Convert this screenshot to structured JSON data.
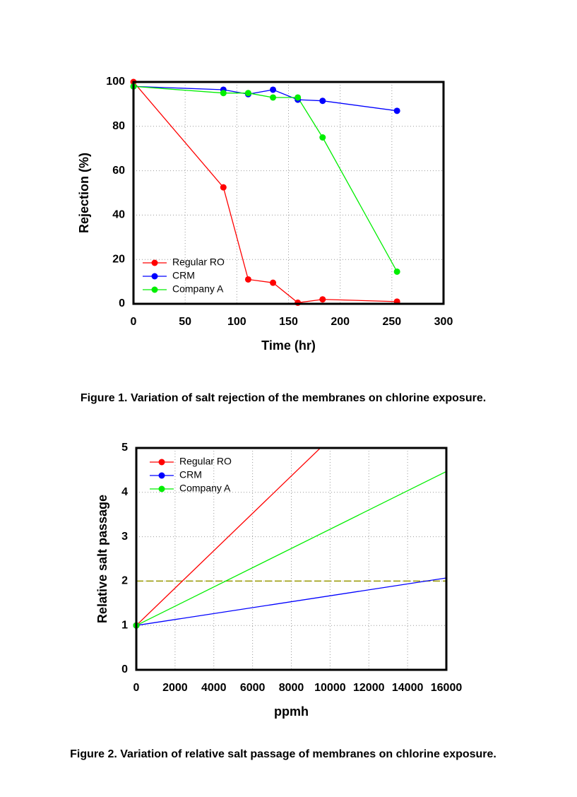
{
  "chart_data": [
    {
      "type": "line",
      "xlabel": "Time (hr)",
      "ylabel": "Rejection (%)",
      "caption": "Figure 1. Variation of salt rejection of the membranes on chlorine exposure.",
      "xlim": [
        0,
        300
      ],
      "xticks": [
        0,
        50,
        100,
        150,
        200,
        250,
        300
      ],
      "ylim": [
        0,
        100
      ],
      "yticks": [
        0,
        20,
        40,
        60,
        80,
        100
      ],
      "grid": true,
      "legend": "lower left",
      "markers": "all",
      "series": [
        {
          "name": "Regular RO",
          "color": "#ff0000",
          "x": [
            0,
            87,
            111,
            135,
            159,
            183,
            255
          ],
          "values": [
            100,
            52.5,
            11,
            9.5,
            0.5,
            2,
            1
          ]
        },
        {
          "name": "CRM",
          "color": "#0000ff",
          "x": [
            0,
            87,
            111,
            135,
            159,
            183,
            255
          ],
          "values": [
            98,
            96.5,
            94.5,
            96.5,
            92,
            91.5,
            87
          ]
        },
        {
          "name": "Company A",
          "color": "#00ee00",
          "x": [
            0,
            87,
            111,
            135,
            159,
            183,
            255
          ],
          "values": [
            98,
            95,
            95,
            93,
            93,
            75,
            14.5
          ]
        }
      ]
    },
    {
      "type": "line",
      "xlabel": "ppmh",
      "ylabel": "Relative salt passage",
      "caption": "Figure 2. Variation of relative salt passage of membranes on chlorine exposure.",
      "xlim": [
        0,
        16000
      ],
      "xticks": [
        0,
        2000,
        4000,
        6000,
        8000,
        10000,
        12000,
        14000,
        16000
      ],
      "ylim": [
        0,
        5
      ],
      "yticks": [
        0,
        1,
        2,
        3,
        4,
        5
      ],
      "grid": true,
      "legend": "upper left",
      "markers": "first",
      "reference_line": {
        "value": 2,
        "color": "#999900"
      },
      "series": [
        {
          "name": "Regular RO",
          "color": "#ff0000",
          "x": [
            0,
            9500
          ],
          "values": [
            1,
            5
          ]
        },
        {
          "name": "CRM",
          "color": "#0000ff",
          "x": [
            0,
            16000
          ],
          "values": [
            1,
            2.07
          ]
        },
        {
          "name": "Company A",
          "color": "#00ee00",
          "x": [
            0,
            16000
          ],
          "values": [
            1,
            4.47
          ]
        }
      ]
    }
  ]
}
